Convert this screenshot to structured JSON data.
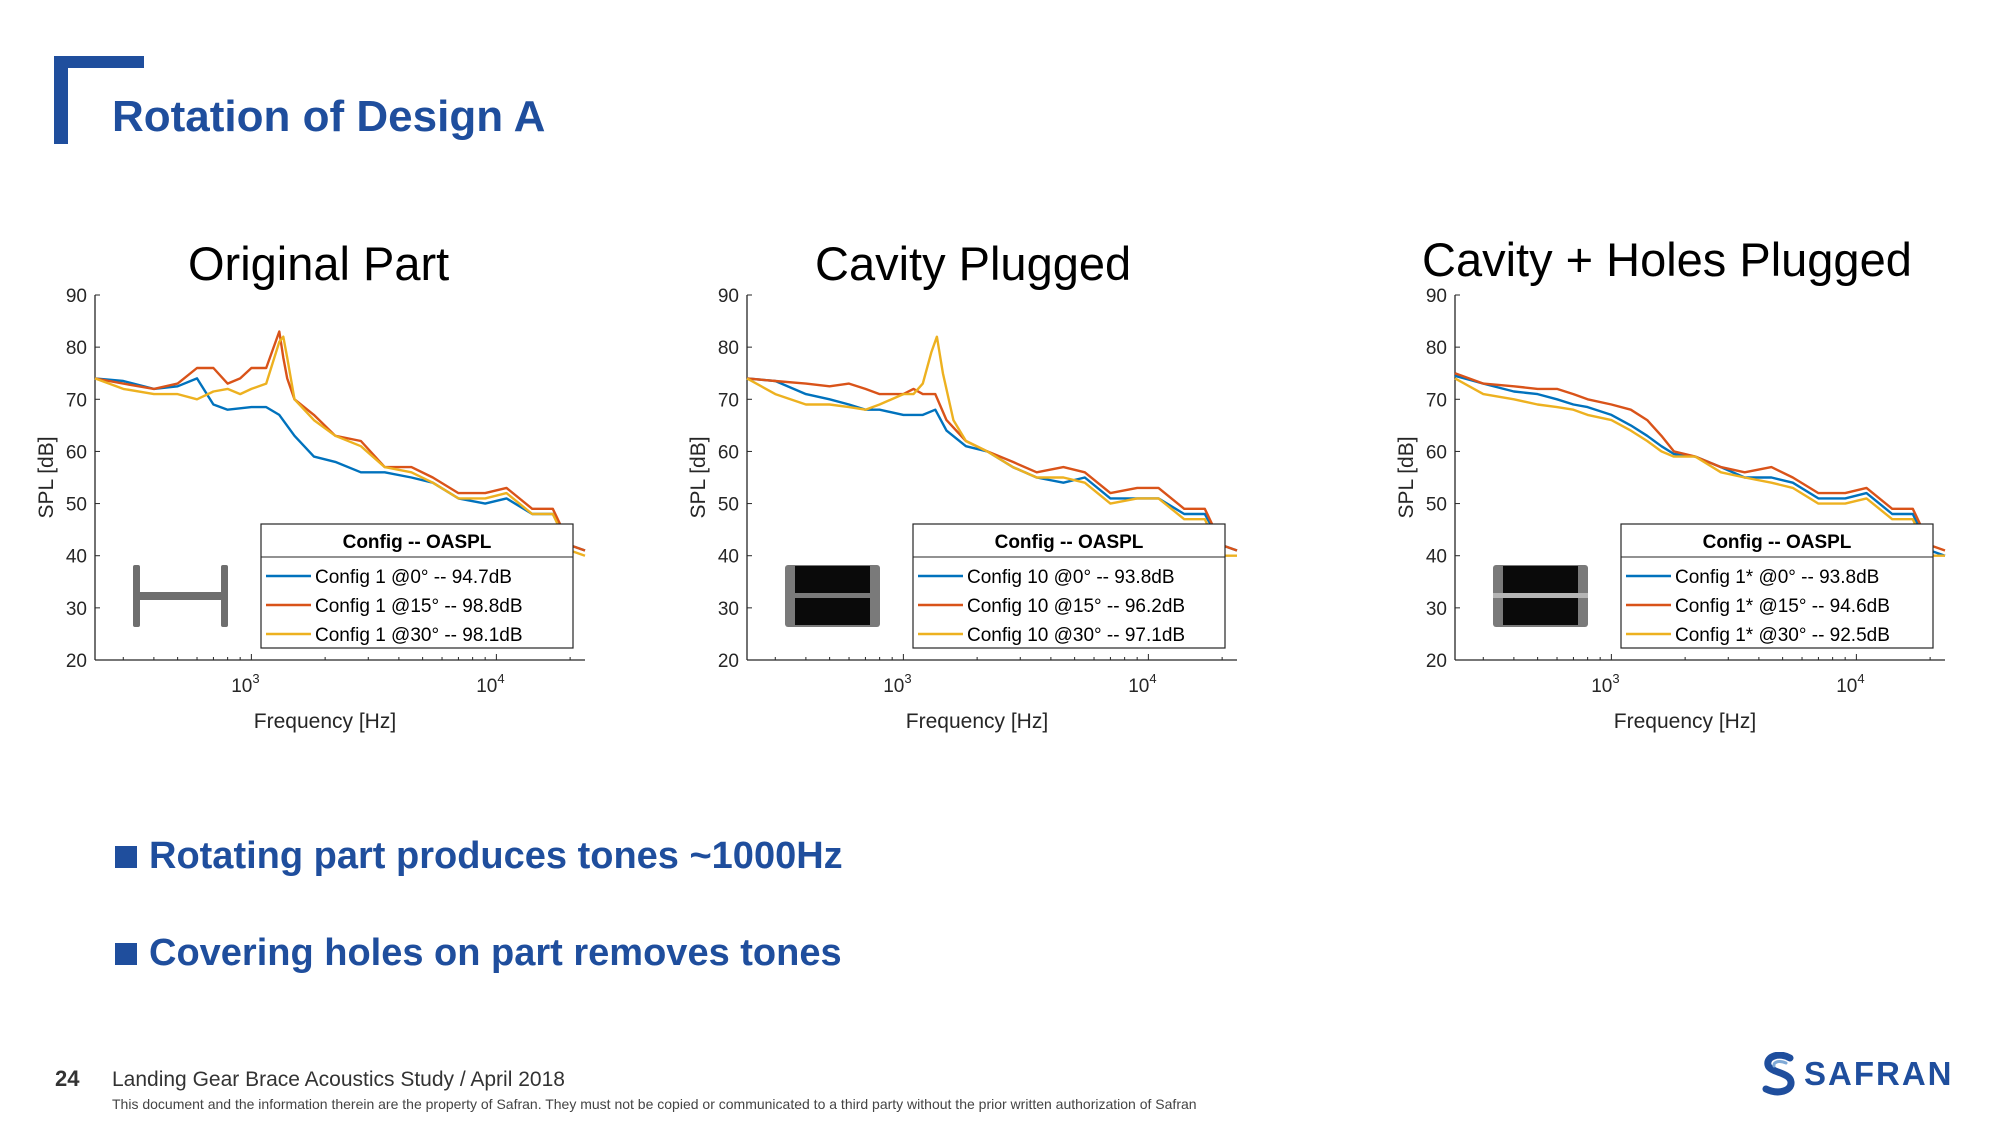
{
  "slide": {
    "title": "Rotation of Design A",
    "page_number": "24",
    "footer_text": "Landing Gear Brace Acoustics Study / April 2018",
    "legal_text": "This document and the information therein are the property of Safran. They must not be copied or communicated to a third party without the prior written authorization of Safran",
    "logo_text": "SAFRAN",
    "accent_color": "#1f4e9d"
  },
  "panels": [
    {
      "title": "Original Part"
    },
    {
      "title": "Cavity Plugged"
    },
    {
      "title": "Cavity + Holes Plugged"
    }
  ],
  "bullets": [
    "Rotating part produces tones ~1000Hz",
    "Covering holes on part removes tones"
  ],
  "chart_data": [
    {
      "type": "line",
      "title": "Original Part",
      "xlabel": "Frequency [Hz]",
      "ylabel": "SPL [dB]",
      "xscale": "log",
      "xlim": [
        230,
        23000
      ],
      "ylim": [
        20,
        90
      ],
      "yticks": [
        "20",
        "30",
        "40",
        "50",
        "60",
        "70",
        "80",
        "90"
      ],
      "xticks": [
        {
          "base": "10",
          "exp": "3"
        },
        {
          "base": "10",
          "exp": "4"
        }
      ],
      "legend": {
        "title": "Config -- OASPL",
        "location": "bottom-right"
      },
      "inset_icon": "i-beam-icon",
      "series": [
        {
          "name": "Config  1 @0° -- 94.7dB",
          "color": "#0072bd",
          "x": [
            230,
            300,
            400,
            500,
            600,
            700,
            800,
            1000,
            1150,
            1300,
            1500,
            1800,
            2200,
            2800,
            3500,
            4500,
            5500,
            7000,
            9000,
            11000,
            14000,
            17000,
            20000,
            23000
          ],
          "y": [
            74,
            73.5,
            72,
            72.5,
            74,
            69,
            68,
            68.5,
            68.5,
            67,
            63,
            59,
            58,
            56,
            56,
            55,
            54,
            51,
            50,
            51,
            48,
            48,
            42,
            41
          ]
        },
        {
          "name": "Config  1 @15° -- 98.8dB",
          "color": "#d95319",
          "x": [
            230,
            300,
            400,
            500,
            600,
            700,
            800,
            900,
            1000,
            1150,
            1300,
            1350,
            1400,
            1500,
            1800,
            2200,
            2800,
            3500,
            4500,
            5500,
            7000,
            9000,
            11000,
            14000,
            17000,
            20000,
            23000
          ],
          "y": [
            74,
            73,
            72,
            73,
            76,
            76,
            73,
            74,
            76,
            76,
            83,
            78,
            74,
            70,
            67,
            63,
            62,
            57,
            57,
            55,
            52,
            52,
            53,
            49,
            49,
            42,
            41
          ]
        },
        {
          "name": "Config  1 @30° -- 98.1dB",
          "color": "#edb120",
          "x": [
            230,
            300,
            400,
            500,
            600,
            700,
            800,
            900,
            1000,
            1150,
            1300,
            1350,
            1400,
            1500,
            1800,
            2200,
            2800,
            3500,
            4500,
            5500,
            7000,
            9000,
            11000,
            14000,
            17000,
            20000,
            23000
          ],
          "y": [
            74,
            72,
            71,
            71,
            70,
            71.5,
            72,
            71,
            72,
            73,
            81,
            82,
            78,
            70,
            66,
            63,
            61,
            57,
            56,
            54,
            51,
            51,
            52,
            48,
            48,
            41,
            40
          ]
        }
      ]
    },
    {
      "type": "line",
      "title": "Cavity Plugged",
      "xlabel": "Frequency [Hz]",
      "ylabel": "SPL [dB]",
      "xscale": "log",
      "xlim": [
        230,
        23000
      ],
      "ylim": [
        20,
        90
      ],
      "yticks": [
        "20",
        "30",
        "40",
        "50",
        "60",
        "70",
        "80",
        "90"
      ],
      "xticks": [
        {
          "base": "10",
          "exp": "3"
        },
        {
          "base": "10",
          "exp": "4"
        }
      ],
      "legend": {
        "title": "Config -- OASPL",
        "location": "bottom-right"
      },
      "inset_icon": "plugged-block-icon",
      "series": [
        {
          "name": "Config  10 @0° -- 93.8dB",
          "color": "#0072bd",
          "x": [
            230,
            300,
            400,
            500,
            600,
            700,
            800,
            1000,
            1200,
            1350,
            1500,
            1800,
            2200,
            2800,
            3500,
            4500,
            5500,
            7000,
            9000,
            11000,
            14000,
            17000,
            20000,
            23000
          ],
          "y": [
            74,
            73.5,
            71,
            70,
            69,
            68,
            68,
            67,
            67,
            68,
            64,
            61,
            60,
            57,
            55,
            54,
            55,
            51,
            51,
            51,
            48,
            48,
            42,
            41
          ]
        },
        {
          "name": "Config  10 @15° -- 96.2dB",
          "color": "#d95319",
          "x": [
            230,
            300,
            400,
            500,
            600,
            700,
            800,
            1000,
            1100,
            1200,
            1350,
            1500,
            1800,
            2200,
            2800,
            3500,
            4500,
            5500,
            7000,
            9000,
            11000,
            14000,
            17000,
            20000,
            23000
          ],
          "y": [
            74,
            73.5,
            73,
            72.5,
            73,
            72,
            71,
            71,
            72,
            71,
            71,
            66,
            62,
            60,
            58,
            56,
            57,
            56,
            52,
            53,
            53,
            49,
            49,
            42,
            41
          ]
        },
        {
          "name": "Config  10 @30° -- 97.1dB",
          "color": "#edb120",
          "x": [
            230,
            300,
            400,
            500,
            600,
            700,
            800,
            1000,
            1100,
            1200,
            1300,
            1370,
            1450,
            1600,
            1800,
            2200,
            2800,
            3500,
            4500,
            5500,
            7000,
            9000,
            11000,
            14000,
            17000,
            20000,
            23000
          ],
          "y": [
            74,
            71,
            69,
            69,
            68.5,
            68,
            69,
            71,
            71,
            73,
            79,
            82,
            75,
            66,
            62,
            60,
            57,
            55,
            55,
            54,
            50,
            51,
            51,
            47,
            47,
            40,
            40
          ]
        }
      ]
    },
    {
      "type": "line",
      "title": "Cavity + Holes Plugged",
      "xlabel": "Frequency [Hz]",
      "ylabel": "SPL [dB]",
      "xscale": "log",
      "xlim": [
        230,
        23000
      ],
      "ylim": [
        20,
        90
      ],
      "yticks": [
        "20",
        "30",
        "40",
        "50",
        "60",
        "70",
        "80",
        "90"
      ],
      "xticks": [
        {
          "base": "10",
          "exp": "3"
        },
        {
          "base": "10",
          "exp": "4"
        }
      ],
      "legend": {
        "title": "Config -- OASPL",
        "location": "bottom-right"
      },
      "inset_icon": "fully-plugged-block-icon",
      "series": [
        {
          "name": "Config  1* @0° -- 93.8dB",
          "color": "#0072bd",
          "x": [
            230,
            300,
            400,
            500,
            600,
            700,
            800,
            1000,
            1200,
            1400,
            1600,
            1800,
            2200,
            2800,
            3500,
            4500,
            5500,
            7000,
            9000,
            11000,
            14000,
            17000,
            20000,
            23000
          ],
          "y": [
            74.5,
            73,
            71.5,
            71,
            70,
            69,
            68.5,
            67,
            65,
            63,
            61,
            59.5,
            59,
            57,
            55,
            55,
            54,
            51,
            51,
            52,
            48,
            48,
            41,
            40
          ]
        },
        {
          "name": "Config  1* @15° -- 94.6dB",
          "color": "#d95319",
          "x": [
            230,
            300,
            400,
            500,
            600,
            700,
            800,
            1000,
            1200,
            1400,
            1600,
            1800,
            2200,
            2800,
            3500,
            4500,
            5500,
            7000,
            9000,
            11000,
            14000,
            17000,
            20000,
            23000
          ],
          "y": [
            75,
            73,
            72.5,
            72,
            72,
            71,
            70,
            69,
            68,
            66,
            63,
            60,
            59,
            57,
            56,
            57,
            55,
            52,
            52,
            53,
            49,
            49,
            42,
            41
          ]
        },
        {
          "name": "Config  1* @30° -- 92.5dB",
          "color": "#edb120",
          "x": [
            230,
            300,
            400,
            500,
            600,
            700,
            800,
            1000,
            1200,
            1400,
            1600,
            1800,
            2200,
            2800,
            3500,
            4500,
            5500,
            7000,
            9000,
            11000,
            14000,
            17000,
            20000,
            23000
          ],
          "y": [
            74,
            71,
            70,
            69,
            68.5,
            68,
            67,
            66,
            64,
            62,
            60,
            59,
            59,
            56,
            55,
            54,
            53,
            50,
            50,
            51,
            47,
            47,
            40,
            40
          ]
        }
      ]
    }
  ]
}
